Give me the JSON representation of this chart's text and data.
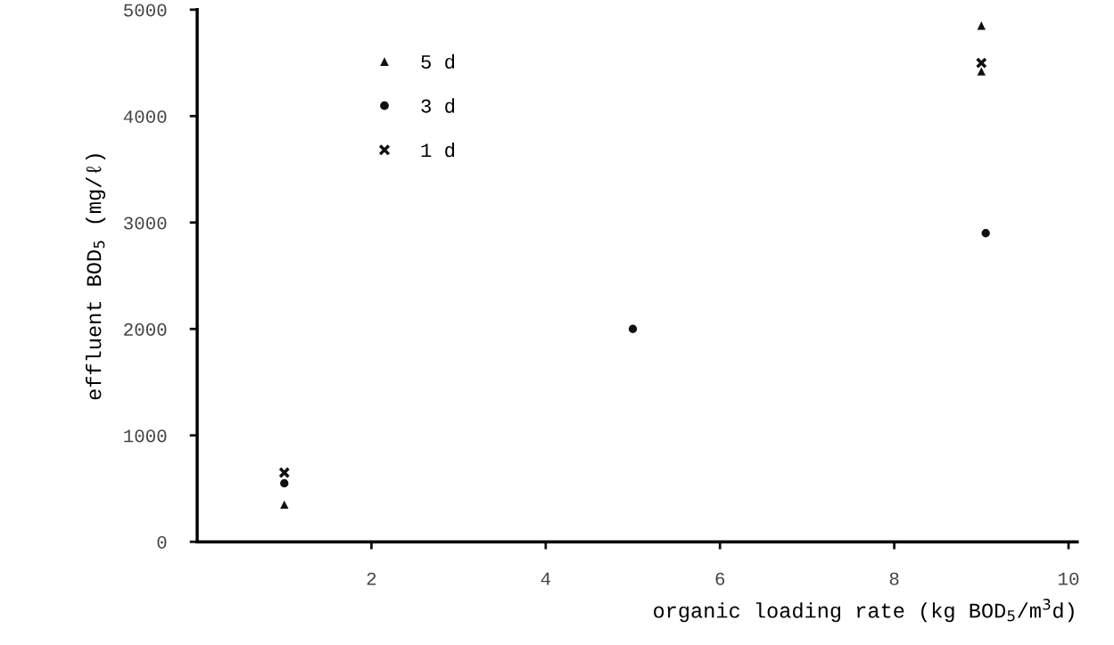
{
  "chart_data": {
    "type": "scatter",
    "xlabel": "organic loading rate (kg BOD$_{5}$/m$^{3}$d)",
    "ylabel": "effluent BOD$_{5}$ (mg/ℓ)",
    "xlim": [
      0,
      10.1
    ],
    "ylim": [
      0,
      5000
    ],
    "xticks": [
      2,
      4,
      6,
      8,
      10
    ],
    "yticks": [
      0,
      1000,
      2000,
      3000,
      4000,
      5000
    ],
    "grid": false,
    "legend": "top left",
    "series": [
      {
        "name": "5 d",
        "color": "#111111",
        "marker": "triangle",
        "x": [
          1,
          9,
          9
        ],
        "values": [
          350,
          4850,
          4420
        ]
      },
      {
        "name": "3 d",
        "color": "#111111",
        "marker": "circle",
        "x": [
          1,
          5,
          9.05
        ],
        "values": [
          550,
          2000,
          2900
        ]
      },
      {
        "name": "1 d",
        "color": "#111111",
        "marker": "cross",
        "x": [
          1,
          9
        ],
        "values": [
          650,
          4500
        ]
      }
    ]
  }
}
